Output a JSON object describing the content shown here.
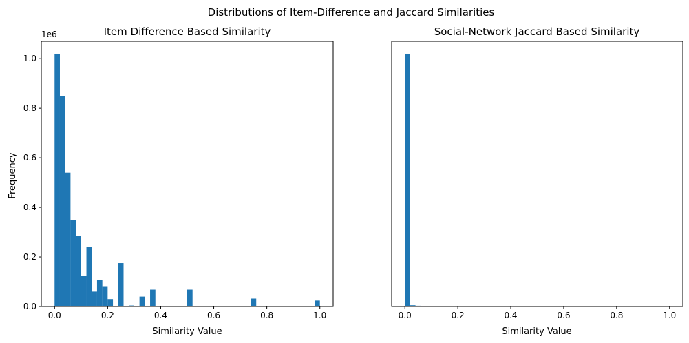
{
  "figure": {
    "suptitle": "Distributions of Item-Difference and Jaccard Similarities",
    "bar_color": "#1f77b4",
    "background": "#ffffff"
  },
  "chart_data": [
    {
      "type": "bar",
      "title": "Item Difference Based Similarity",
      "xlabel": "Similarity Value",
      "ylabel": "Frequency",
      "y_offset_label": "1e6",
      "xlim": [
        -0.05,
        1.05
      ],
      "ylim": [
        0,
        1.07
      ],
      "x_ticks": [
        0.0,
        0.2,
        0.4,
        0.6,
        0.8,
        1.0
      ],
      "x_tick_labels": [
        "0.0",
        "0.2",
        "0.4",
        "0.6",
        "0.8",
        "1.0"
      ],
      "y_ticks": [
        0.0,
        0.2,
        0.4,
        0.6,
        0.8,
        1.0
      ],
      "y_tick_labels": [
        "0.0",
        "0.2",
        "0.4",
        "0.6",
        "0.8",
        "1.0"
      ],
      "y_unit": "millions",
      "bin_width": 0.02,
      "bin_starts": [
        0.0,
        0.02,
        0.04,
        0.06,
        0.08,
        0.1,
        0.12,
        0.14,
        0.16,
        0.18,
        0.2,
        0.24,
        0.28,
        0.32,
        0.36,
        0.5,
        0.74,
        0.98
      ],
      "values": [
        1.02,
        0.85,
        0.54,
        0.35,
        0.285,
        0.125,
        0.24,
        0.06,
        0.108,
        0.082,
        0.03,
        0.175,
        0.004,
        0.04,
        0.068,
        0.068,
        0.032,
        0.024
      ],
      "grid": false
    },
    {
      "type": "bar",
      "title": "Social-Network Jaccard Based Similarity",
      "xlabel": "Similarity Value",
      "ylabel": "",
      "xlim": [
        -0.05,
        1.05
      ],
      "ylim": [
        0,
        1.07
      ],
      "x_ticks": [
        0.0,
        0.2,
        0.4,
        0.6,
        0.8,
        1.0
      ],
      "x_tick_labels": [
        "0.0",
        "0.2",
        "0.4",
        "0.6",
        "0.8",
        "1.0"
      ],
      "y_unit": "millions",
      "shared_y": true,
      "bin_width": 0.02,
      "bin_starts": [
        0.0,
        0.02,
        0.04,
        0.06
      ],
      "values": [
        1.02,
        0.005,
        0.003,
        0.002
      ],
      "grid": false
    }
  ]
}
